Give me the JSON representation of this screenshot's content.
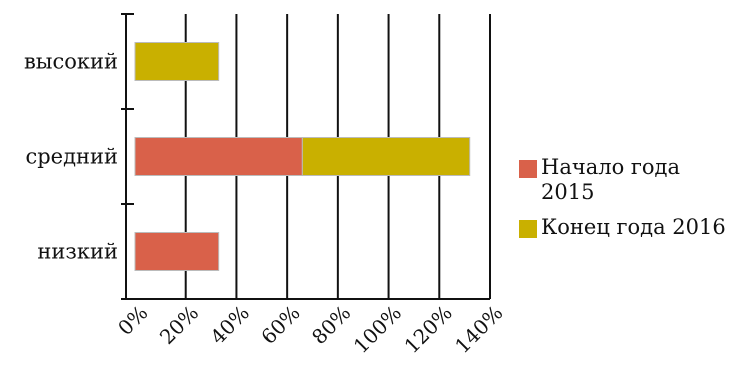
{
  "chart_data": {
    "type": "bar",
    "orientation": "horizontal",
    "stacked": true,
    "categories": [
      "высокий",
      "средний",
      "низкий"
    ],
    "series": [
      {
        "name": "Начало года 2015",
        "color": "#d9614a",
        "values": [
          0,
          66,
          33
        ]
      },
      {
        "name": "Конец года 2016",
        "color": "#c9b000",
        "values": [
          33,
          66,
          0
        ]
      }
    ],
    "xlim": [
      0,
      140
    ],
    "xticks": [
      "0%",
      "20%",
      "40%",
      "60%",
      "80%",
      "100%",
      "120%",
      "140%"
    ],
    "xlabel": "",
    "ylabel": "",
    "grid": "vertical",
    "legend": {
      "placement": "right",
      "entries": [
        {
          "lines": [
            "Начало года",
            "2015"
          ],
          "color": "#d9614a"
        },
        {
          "lines": [
            "Конец года 2016"
          ],
          "color": "#c9b000"
        }
      ]
    }
  }
}
